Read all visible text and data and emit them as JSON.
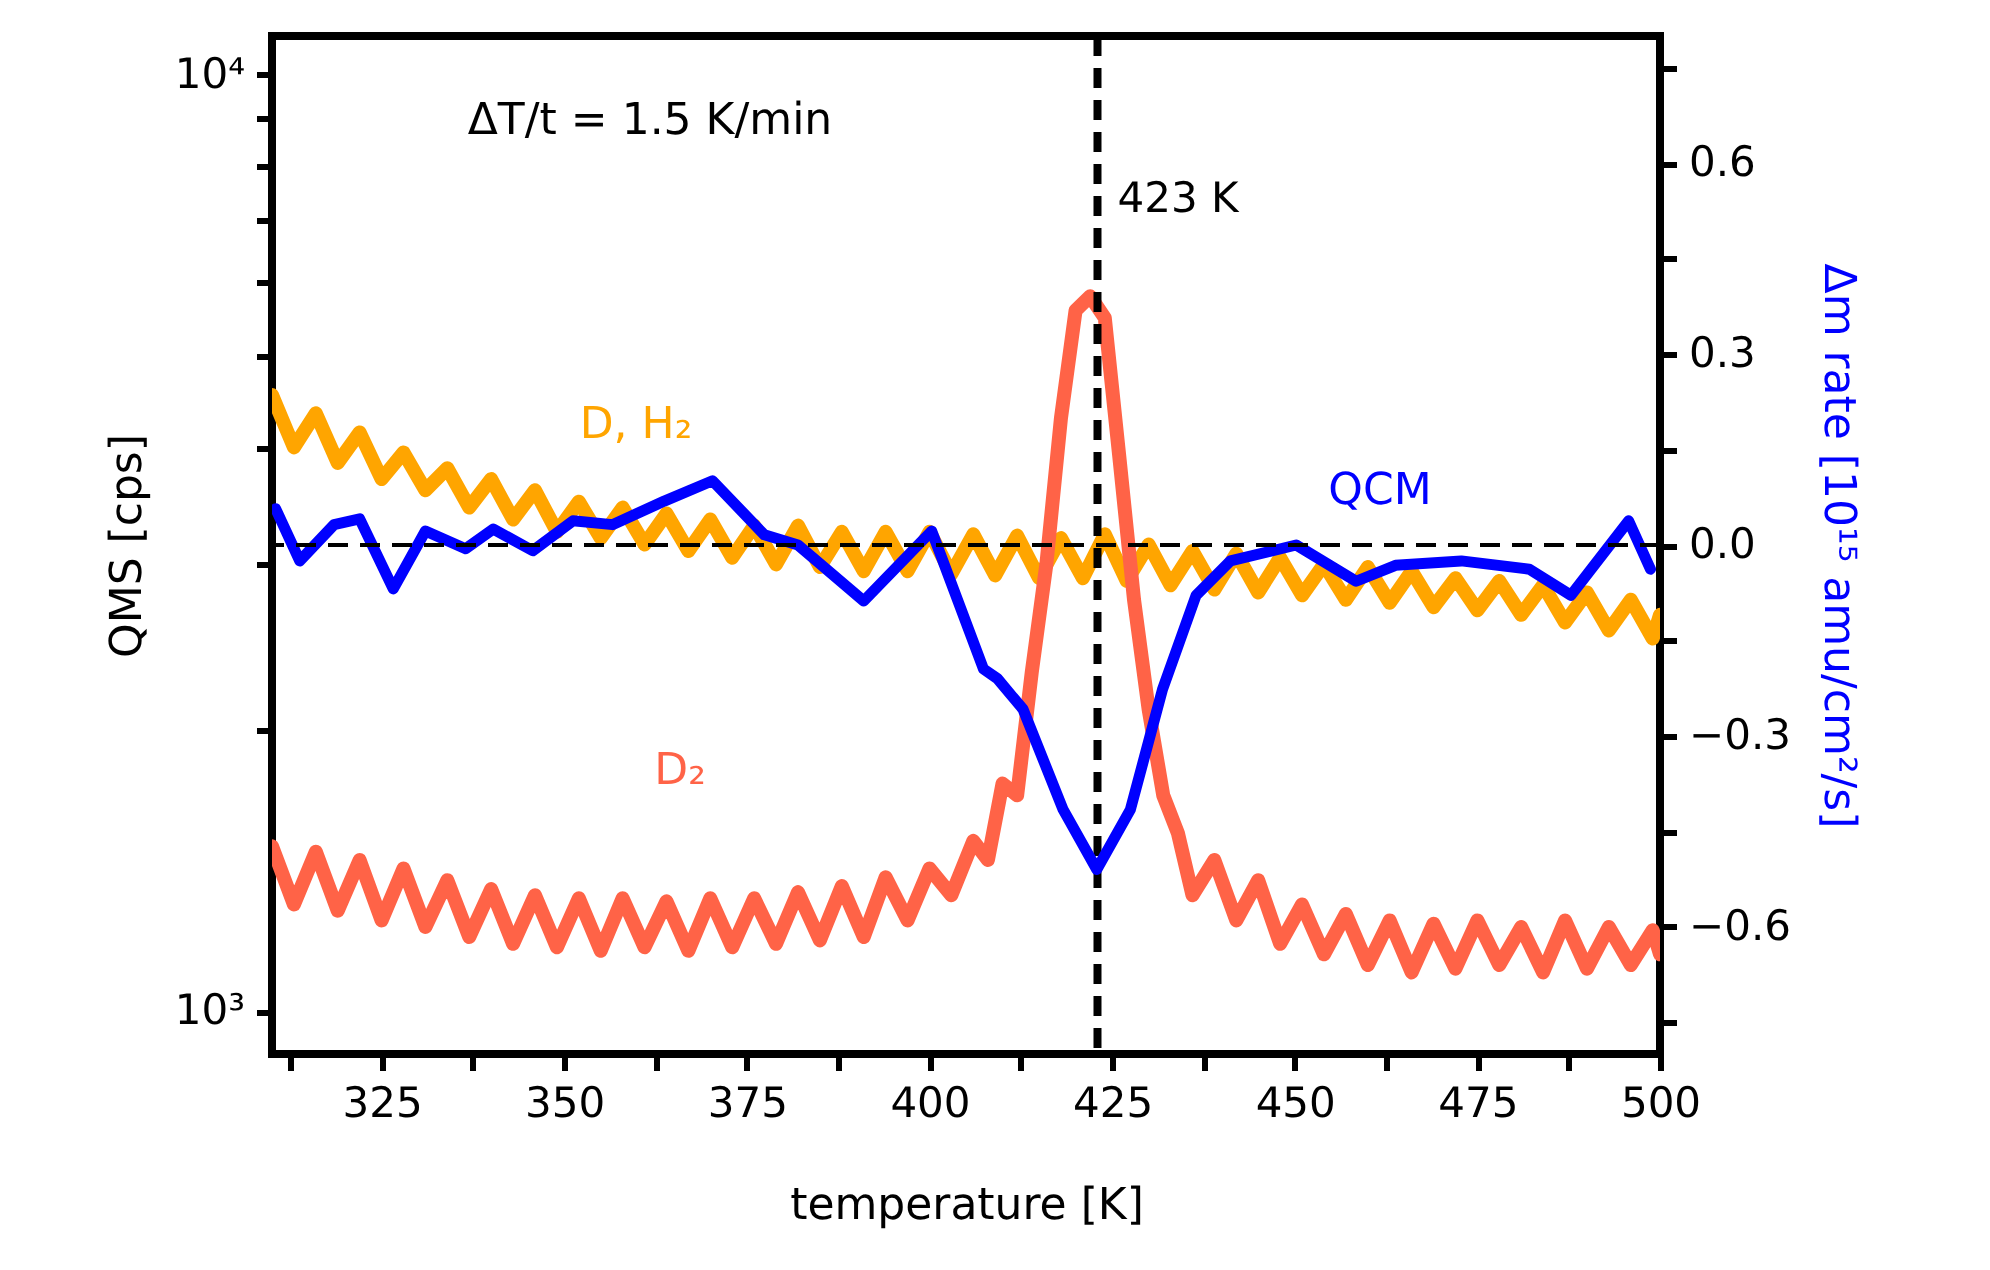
{
  "chart_data": {
    "type": "line",
    "xlabel": "temperature [K]",
    "ylabel": "QMS [cps]",
    "y2label": "Δm rate [10¹⁵ amu/cm²/s]",
    "annotations": [
      "ΔT/t = 1.5 K/min"
    ],
    "log": "y",
    "xlim": [
      310,
      500
    ],
    "xticks": [
      {
        "value": 312.5,
        "label": null
      },
      325,
      {
        "value": 337.5,
        "label": null
      },
      350,
      {
        "value": 362.5,
        "label": null
      },
      375,
      {
        "value": 387.5,
        "label": null
      },
      400,
      {
        "value": 412.5,
        "label": null
      },
      425,
      {
        "value": 437.5,
        "label": null
      },
      450,
      {
        "value": 462.5,
        "label": null
      },
      475,
      {
        "value": 487.5,
        "label": null
      },
      500
    ],
    "ylim": [
      900,
      11000
    ],
    "yticks": [
      {
        "value": 1000,
        "label": "10³"
      },
      {
        "value": 2000,
        "label": null
      },
      {
        "value": 3000,
        "label": null
      },
      {
        "value": 4000,
        "label": null
      },
      {
        "value": 5000,
        "label": null
      },
      {
        "value": 6000,
        "label": null
      },
      {
        "value": 7000,
        "label": null
      },
      {
        "value": 8000,
        "label": null
      },
      {
        "value": 9000,
        "label": null
      },
      {
        "value": 10000,
        "label": "10⁴"
      }
    ],
    "y2lim": [
      -0.8,
      0.8
    ],
    "y2ticks": [
      {
        "value": -0.75,
        "label": null
      },
      {
        "value": -0.6,
        "label": "−0.6"
      },
      {
        "value": -0.45,
        "label": null
      },
      {
        "value": -0.3,
        "label": "−0.3"
      },
      {
        "value": -0.15,
        "label": null
      },
      {
        "value": 0,
        "label": "0.0"
      },
      {
        "value": 0.15,
        "label": null
      },
      0.3,
      {
        "value": 0.45,
        "label": null
      },
      0.6,
      {
        "value": 0.75,
        "label": null
      }
    ],
    "ref_lines": [
      {
        "axis": "x",
        "value": 423,
        "label": "423 K",
        "color": "#000000",
        "line_style": "dashed"
      },
      {
        "axis": "y2",
        "value": 0,
        "color": "#000000",
        "line_style": "dashed"
      }
    ],
    "series": [
      {
        "name": "D, H₂",
        "color": "#ffa500",
        "x": [
          310,
          313,
          316,
          319,
          322,
          325,
          328,
          331,
          334,
          337,
          340,
          343,
          346,
          349,
          352,
          355,
          358,
          361,
          364,
          367,
          370,
          373,
          376,
          379,
          382,
          385,
          388,
          391,
          394,
          397,
          400,
          403,
          406,
          409,
          412,
          415,
          418,
          421,
          424,
          427,
          430,
          433,
          436,
          439,
          442,
          445,
          448,
          451,
          454,
          457,
          460,
          463,
          466,
          469,
          472,
          475,
          478,
          481,
          484,
          487,
          490,
          493,
          496,
          499,
          500
        ],
        "values": [
          4550,
          4000,
          4350,
          3850,
          4150,
          3700,
          3950,
          3600,
          3800,
          3450,
          3700,
          3350,
          3600,
          3250,
          3500,
          3200,
          3450,
          3150,
          3400,
          3100,
          3350,
          3050,
          3300,
          3000,
          3300,
          2980,
          3250,
          2950,
          3250,
          2950,
          3250,
          2930,
          3230,
          2920,
          3220,
          2900,
          3200,
          2900,
          3230,
          2880,
          3150,
          2850,
          3100,
          2820,
          3080,
          2800,
          3050,
          2780,
          3000,
          2750,
          2980,
          2730,
          2950,
          2700,
          2900,
          2680,
          2880,
          2650,
          2850,
          2600,
          2800,
          2550,
          2750,
          2500,
          2650
        ]
      },
      {
        "name": "D₂",
        "color": "#ff6347",
        "x": [
          310,
          313,
          316,
          319,
          322,
          325,
          328,
          331,
          334,
          337,
          340,
          343,
          346,
          349,
          352,
          355,
          358,
          361,
          364,
          367,
          370,
          373,
          376,
          379,
          382,
          385,
          388,
          391,
          394,
          397,
          400,
          403,
          406,
          408,
          410,
          412,
          414,
          416,
          418,
          420,
          422,
          424,
          426,
          428,
          430,
          432,
          434,
          436,
          439,
          442,
          445,
          448,
          451,
          454,
          457,
          460,
          463,
          466,
          469,
          472,
          475,
          478,
          481,
          484,
          487,
          490,
          493,
          496,
          499,
          500
        ],
        "values": [
          1500,
          1300,
          1480,
          1280,
          1450,
          1250,
          1420,
          1230,
          1380,
          1200,
          1350,
          1180,
          1330,
          1170,
          1320,
          1160,
          1320,
          1170,
          1310,
          1160,
          1320,
          1170,
          1320,
          1180,
          1340,
          1190,
          1360,
          1200,
          1390,
          1250,
          1420,
          1330,
          1520,
          1450,
          1750,
          1700,
          2300,
          3000,
          4300,
          5600,
          5800,
          5500,
          3900,
          2750,
          2100,
          1700,
          1550,
          1330,
          1450,
          1250,
          1380,
          1180,
          1300,
          1150,
          1270,
          1120,
          1250,
          1100,
          1240,
          1110,
          1250,
          1120,
          1230,
          1100,
          1250,
          1110,
          1230,
          1120,
          1220,
          1150
        ]
      },
      {
        "name": "QCM",
        "color": "#0000ff",
        "axis": "y2",
        "x": [
          310.5,
          313.8,
          318.5,
          322,
          326.6,
          331,
          336.5,
          340.3,
          345.7,
          351.2,
          356.6,
          363.7,
          370.3,
          377.4,
          382,
          391,
          400.3,
          407.4,
          409.3,
          412.8,
          418.3,
          422.9,
          427.5,
          431.9,
          436.5,
          441.2,
          450.2,
          458.4,
          463.8,
          472.8,
          482.1,
          487.8,
          495.7,
          498.7
        ],
        "values": [
          0.057,
          -0.025,
          0.032,
          0.041,
          -0.069,
          0.022,
          -0.006,
          0.025,
          -0.009,
          0.038,
          0.032,
          0.069,
          0.101,
          0.016,
          0,
          -0.088,
          0.022,
          -0.195,
          -0.21,
          -0.258,
          -0.416,
          -0.51,
          -0.416,
          -0.227,
          -0.079,
          -0.025,
          0,
          -0.057,
          -0.032,
          -0.025,
          -0.038,
          -0.079,
          0.038,
          -0.038
        ]
      }
    ]
  }
}
